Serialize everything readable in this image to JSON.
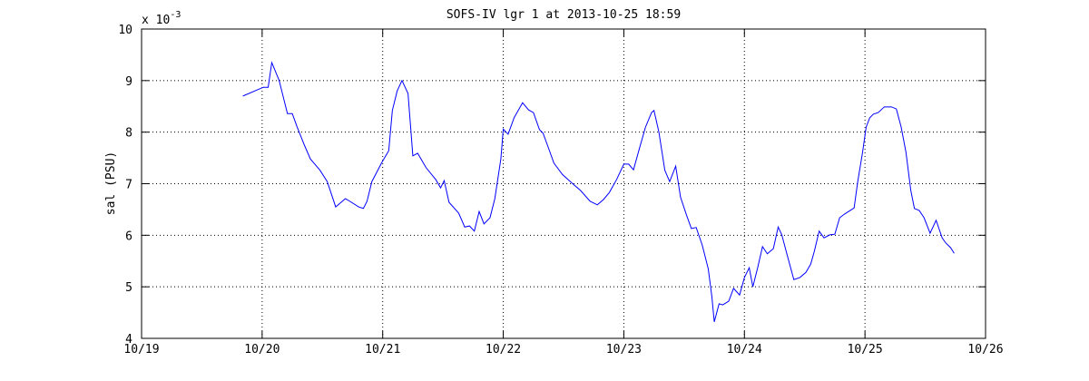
{
  "chart_data": {
    "type": "line",
    "title": "SOFS-IV lgr 1 at 2013-10-25 18:59",
    "ylabel": "sal (PSU)",
    "y_multiplier": {
      "base": "x 10",
      "exponent": "-3"
    },
    "x": [
      19.84,
      20.01,
      20.05,
      20.08,
      20.14,
      20.21,
      20.25,
      20.29,
      20.35,
      20.4,
      20.48,
      20.54,
      20.61,
      20.69,
      20.72,
      20.8,
      20.84,
      20.87,
      20.91,
      20.99,
      21.05,
      21.08,
      21.12,
      21.16,
      21.21,
      21.25,
      21.29,
      21.36,
      21.44,
      21.48,
      21.51,
      21.55,
      21.63,
      21.68,
      21.72,
      21.76,
      21.8,
      21.84,
      21.89,
      21.93,
      21.98,
      22.0,
      22.04,
      22.09,
      22.16,
      22.21,
      22.25,
      22.3,
      22.33,
      22.38,
      22.42,
      22.49,
      22.57,
      22.64,
      22.72,
      22.78,
      22.83,
      22.88,
      22.94,
      23.0,
      23.04,
      23.08,
      23.13,
      23.18,
      23.23,
      23.25,
      23.29,
      23.34,
      23.38,
      23.43,
      23.47,
      23.52,
      23.56,
      23.6,
      23.65,
      23.7,
      23.73,
      23.75,
      23.79,
      23.82,
      23.87,
      23.91,
      23.96,
      24.0,
      24.04,
      24.07,
      24.11,
      24.15,
      24.19,
      24.24,
      24.28,
      24.31,
      24.36,
      24.41,
      24.46,
      24.51,
      24.55,
      24.58,
      24.62,
      24.66,
      24.71,
      24.75,
      24.79,
      24.83,
      24.91,
      24.94,
      24.98,
      25.01,
      25.04,
      25.07,
      25.11,
      25.16,
      25.22,
      25.26,
      25.3,
      25.34,
      25.38,
      25.41,
      25.45,
      25.49,
      25.54,
      25.59,
      25.64,
      25.67,
      25.71,
      25.74
    ],
    "values": [
      8.7,
      8.87,
      8.87,
      9.35,
      9.01,
      8.36,
      8.36,
      8.1,
      7.75,
      7.48,
      7.26,
      7.04,
      6.55,
      6.71,
      6.67,
      6.55,
      6.52,
      6.66,
      7.04,
      7.4,
      7.64,
      8.42,
      8.8,
      9.0,
      8.75,
      7.54,
      7.59,
      7.31,
      7.08,
      6.92,
      7.06,
      6.64,
      6.43,
      6.16,
      6.18,
      6.08,
      6.46,
      6.22,
      6.34,
      6.71,
      7.48,
      8.06,
      7.96,
      8.28,
      8.57,
      8.43,
      8.38,
      8.05,
      7.98,
      7.66,
      7.4,
      7.18,
      7.01,
      6.87,
      6.66,
      6.59,
      6.69,
      6.83,
      7.08,
      7.38,
      7.38,
      7.27,
      7.69,
      8.1,
      8.38,
      8.42,
      8.01,
      7.26,
      7.04,
      7.34,
      6.74,
      6.39,
      6.13,
      6.15,
      5.81,
      5.35,
      4.81,
      4.32,
      4.67,
      4.65,
      4.72,
      4.97,
      4.84,
      5.18,
      5.37,
      5.0,
      5.37,
      5.78,
      5.64,
      5.74,
      6.16,
      6.01,
      5.57,
      5.14,
      5.18,
      5.28,
      5.44,
      5.69,
      6.08,
      5.95,
      6.01,
      6.02,
      6.34,
      6.41,
      6.53,
      7.04,
      7.61,
      8.1,
      8.28,
      8.35,
      8.38,
      8.49,
      8.49,
      8.45,
      8.1,
      7.61,
      6.87,
      6.52,
      6.48,
      6.34,
      6.04,
      6.29,
      5.95,
      5.85,
      5.76,
      5.65
    ],
    "color": "#0000ff",
    "xlim": [
      19,
      26
    ],
    "xticks": [
      {
        "value": 19,
        "label": "10/19"
      },
      {
        "value": 20,
        "label": "10/20"
      },
      {
        "value": 21,
        "label": "10/21"
      },
      {
        "value": 22,
        "label": "10/22"
      },
      {
        "value": 23,
        "label": "10/23"
      },
      {
        "value": 24,
        "label": "10/24"
      },
      {
        "value": 25,
        "label": "10/25"
      },
      {
        "value": 26,
        "label": "10/26"
      }
    ],
    "ylim": [
      4,
      10
    ],
    "yticks": [
      4,
      5,
      6,
      7,
      8,
      9,
      10
    ],
    "grid": true
  }
}
